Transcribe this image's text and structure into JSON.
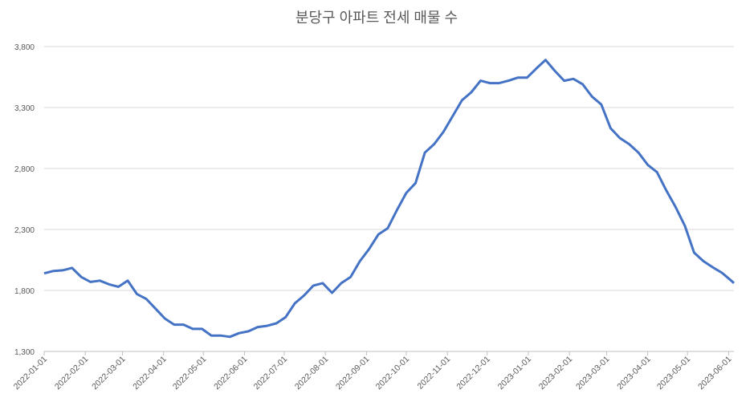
{
  "chart_data": {
    "type": "line",
    "title": "분당구 아파트 전세 매물 수",
    "x": [
      "2022-01-01",
      "2022-01-08",
      "2022-01-15",
      "2022-01-22",
      "2022-01-29",
      "2022-02-05",
      "2022-02-12",
      "2022-02-19",
      "2022-02-26",
      "2022-03-05",
      "2022-03-12",
      "2022-03-19",
      "2022-03-26",
      "2022-04-02",
      "2022-04-09",
      "2022-04-16",
      "2022-04-23",
      "2022-04-30",
      "2022-05-07",
      "2022-05-14",
      "2022-05-21",
      "2022-05-28",
      "2022-06-04",
      "2022-06-11",
      "2022-06-18",
      "2022-06-25",
      "2022-07-02",
      "2022-07-09",
      "2022-07-16",
      "2022-07-23",
      "2022-07-30",
      "2022-08-06",
      "2022-08-13",
      "2022-08-20",
      "2022-08-27",
      "2022-09-03",
      "2022-09-10",
      "2022-09-17",
      "2022-09-24",
      "2022-10-01",
      "2022-10-08",
      "2022-10-15",
      "2022-10-22",
      "2022-10-29",
      "2022-11-05",
      "2022-11-12",
      "2022-11-19",
      "2022-11-26",
      "2022-12-03",
      "2022-12-10",
      "2022-12-17",
      "2022-12-24",
      "2022-12-31",
      "2023-01-07",
      "2023-01-14",
      "2023-01-21",
      "2023-01-28",
      "2023-02-04",
      "2023-02-11",
      "2023-02-18",
      "2023-02-25",
      "2023-03-04",
      "2023-03-11",
      "2023-03-18",
      "2023-03-25",
      "2023-04-01",
      "2023-04-08",
      "2023-04-15",
      "2023-04-22",
      "2023-04-29",
      "2023-05-06",
      "2023-05-13",
      "2023-05-20",
      "2023-05-27",
      "2023-06-03",
      "2023-06-05"
    ],
    "series": [
      {
        "name": "매물 수",
        "color": "#4472c4",
        "values": [
          1940,
          1960,
          1965,
          1985,
          1910,
          1870,
          1880,
          1850,
          1830,
          1880,
          1770,
          1730,
          1650,
          1570,
          1520,
          1520,
          1485,
          1485,
          1430,
          1430,
          1420,
          1450,
          1465,
          1500,
          1510,
          1530,
          1580,
          1695,
          1760,
          1840,
          1860,
          1780,
          1860,
          1910,
          2040,
          2140,
          2260,
          2310,
          2460,
          2600,
          2680,
          2930,
          3000,
          3100,
          3230,
          3360,
          3425,
          3520,
          3500,
          3500,
          3520,
          3545,
          3545,
          3620,
          3690,
          3600,
          3520,
          3535,
          3490,
          3390,
          3325,
          3130,
          3050,
          3000,
          2930,
          2830,
          2770,
          2620,
          2485,
          2330,
          2110,
          2040,
          1990,
          1945,
          1880,
          1860
        ]
      }
    ],
    "xlim": [
      "2022-01-01",
      "2023-06-05"
    ],
    "xticks": [
      "2022-01-01",
      "2022-02-01",
      "2022-03-01",
      "2022-04-01",
      "2022-05-01",
      "2022-06-01",
      "2022-07-01",
      "2022-08-01",
      "2022-09-01",
      "2022-10-01",
      "2022-11-01",
      "2022-12-01",
      "2023-01-01",
      "2023-02-01",
      "2023-03-01",
      "2023-04-01",
      "2023-05-01",
      "2023-06-01"
    ],
    "ylim": [
      1300,
      3800
    ],
    "yticks": [
      {
        "value": 1300,
        "label": "1,300"
      },
      {
        "value": 1800,
        "label": "1,800"
      },
      {
        "value": 2300,
        "label": "2,300"
      },
      {
        "value": 2800,
        "label": "2,800"
      },
      {
        "value": 3300,
        "label": "3,300"
      },
      {
        "value": 3800,
        "label": "3,800"
      }
    ],
    "grid": true,
    "legend": false
  }
}
